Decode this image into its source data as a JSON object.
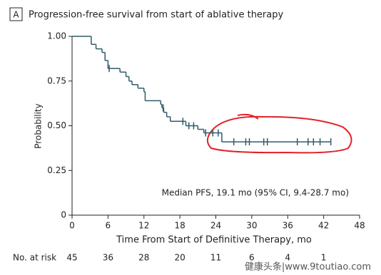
{
  "chart_data": {
    "type": "step",
    "panel_label": "A",
    "title": "Progression-free survival from start of ablative therapy",
    "xlabel": "Time From Start of Definitive Therapy, mo",
    "ylabel": "Probability",
    "annotation": "Median PFS, 19.1 mo (95% CI, 9.4-28.7 mo)",
    "color": "#2f5b68",
    "x": [
      0,
      3.2,
      4,
      5,
      5.5,
      6,
      8,
      9,
      9.5,
      10,
      11,
      12,
      12.2,
      14.8,
      15,
      15.3,
      15.8,
      16.4,
      19,
      21,
      22,
      25,
      43.2
    ],
    "values": [
      1,
      0.955,
      0.93,
      0.91,
      0.865,
      0.82,
      0.8,
      0.775,
      0.75,
      0.73,
      0.71,
      0.69,
      0.64,
      0.62,
      0.6,
      0.575,
      0.55,
      0.525,
      0.5,
      0.48,
      0.46,
      0.41,
      0.41
    ],
    "censored": {
      "x": [
        6.2,
        15.2,
        18.5,
        19.5,
        20.3,
        22.3,
        23.5,
        24.4,
        27,
        29,
        29.6,
        32,
        32.6,
        37.6,
        39.4,
        40.3,
        41.4,
        43.2
      ],
      "values": [
        0.82,
        0.6,
        0.525,
        0.5,
        0.5,
        0.46,
        0.46,
        0.46,
        0.41,
        0.41,
        0.41,
        0.41,
        0.41,
        0.41,
        0.41,
        0.41,
        0.41,
        0.41
      ]
    },
    "xlim": [
      0,
      48
    ],
    "xticks": [
      0,
      6,
      12,
      18,
      24,
      30,
      36,
      42,
      48
    ],
    "ylim": [
      0,
      1
    ],
    "yticks": [
      0,
      {
        "value": 0.25,
        "label": "0.25"
      },
      {
        "value": 0.5,
        "label": "0.50"
      },
      {
        "value": 0.75,
        "label": "0.75"
      },
      {
        "value": 1,
        "label": "1.00"
      }
    ],
    "risk_table": {
      "label": "No. at risk",
      "values": [
        45,
        36,
        28,
        20,
        11,
        6,
        4,
        1
      ]
    },
    "watermark": "健康头条|www.9toutiao.com"
  }
}
